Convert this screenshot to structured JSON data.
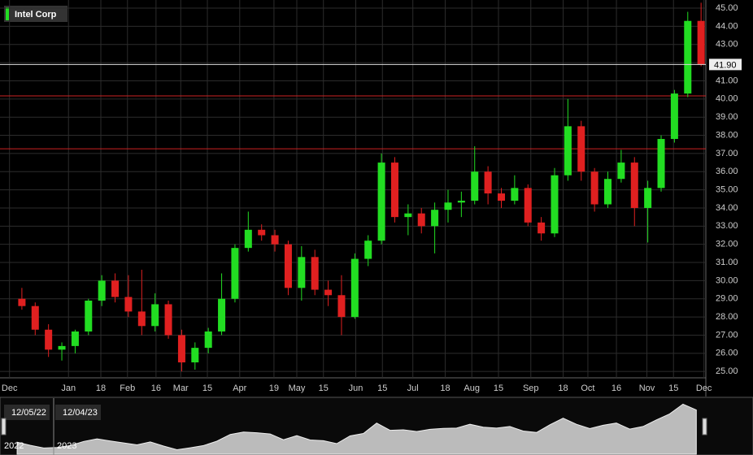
{
  "chart_data": {
    "type": "candlestick",
    "legend": "Intel Corp",
    "legend_color": "#22dd22",
    "up_color": "#22dd22",
    "down_color": "#e02020",
    "grid": true,
    "x": [
      "2022-12-05",
      "2022-12-12",
      "2022-12-19",
      "2022-12-26",
      "2023-01-02",
      "2023-01-09",
      "2023-01-16",
      "2023-01-23",
      "2023-01-30",
      "2023-02-06",
      "2023-02-13",
      "2023-02-20",
      "2023-02-27",
      "2023-03-06",
      "2023-03-13",
      "2023-03-20",
      "2023-03-27",
      "2023-04-03",
      "2023-04-10",
      "2023-04-17",
      "2023-04-24",
      "2023-05-01",
      "2023-05-08",
      "2023-05-15",
      "2023-05-22",
      "2023-05-29",
      "2023-06-05",
      "2023-06-12",
      "2023-06-19",
      "2023-06-26",
      "2023-07-03",
      "2023-07-10",
      "2023-07-17",
      "2023-07-24",
      "2023-07-31",
      "2023-08-07",
      "2023-08-14",
      "2023-08-21",
      "2023-08-28",
      "2023-09-04",
      "2023-09-11",
      "2023-09-18",
      "2023-09-25",
      "2023-10-02",
      "2023-10-09",
      "2023-10-16",
      "2023-10-23",
      "2023-10-30",
      "2023-11-06",
      "2023-11-13",
      "2023-11-20",
      "2023-11-27"
    ],
    "open": [
      29.0,
      28.6,
      27.3,
      26.2,
      26.4,
      27.2,
      28.9,
      30.0,
      29.1,
      28.3,
      27.5,
      28.7,
      27.0,
      25.5,
      26.3,
      27.2,
      29.0,
      31.8,
      32.8,
      32.5,
      32.0,
      29.6,
      31.3,
      29.5,
      29.2,
      28.0,
      31.2,
      32.2,
      36.5,
      33.5,
      33.7,
      33.0,
      33.9,
      34.3,
      34.4,
      36.0,
      34.8,
      34.4,
      35.1,
      33.2,
      32.6,
      35.8,
      38.5,
      36.0,
      34.2,
      35.6,
      36.5,
      34.0,
      35.1,
      37.8,
      40.3,
      44.3
    ],
    "high": [
      29.6,
      28.8,
      27.6,
      26.6,
      27.3,
      29.0,
      30.3,
      30.4,
      30.3,
      30.6,
      29.3,
      28.9,
      27.3,
      26.6,
      27.4,
      30.4,
      32.0,
      33.8,
      33.1,
      32.8,
      32.2,
      31.9,
      31.7,
      30.0,
      30.3,
      31.5,
      32.5,
      37.0,
      36.8,
      34.2,
      34.0,
      34.3,
      35.0,
      34.9,
      37.4,
      36.3,
      35.1,
      35.8,
      35.3,
      33.5,
      36.2,
      40.0,
      38.8,
      36.2,
      36.0,
      37.2,
      36.8,
      35.5,
      38.0,
      40.5,
      44.8,
      45.3
    ],
    "low": [
      28.4,
      27.0,
      25.8,
      25.6,
      26.0,
      27.0,
      28.6,
      28.8,
      28.0,
      27.0,
      27.2,
      26.8,
      25.0,
      25.1,
      26.0,
      27.0,
      28.8,
      31.6,
      32.2,
      31.6,
      29.2,
      28.9,
      29.2,
      28.6,
      27.0,
      27.9,
      30.8,
      32.0,
      33.2,
      32.5,
      32.6,
      31.5,
      33.2,
      33.5,
      34.2,
      34.2,
      34.0,
      34.2,
      33.0,
      32.2,
      32.4,
      35.5,
      35.5,
      33.8,
      34.0,
      35.4,
      33.0,
      32.1,
      34.9,
      37.6,
      40.1,
      41.8
    ],
    "close": [
      28.6,
      27.3,
      26.2,
      26.4,
      27.2,
      28.9,
      30.0,
      29.1,
      28.3,
      27.5,
      28.7,
      27.0,
      25.5,
      26.3,
      27.2,
      29.0,
      31.8,
      32.8,
      32.5,
      32.0,
      29.6,
      31.3,
      29.5,
      29.2,
      28.0,
      31.2,
      32.2,
      36.5,
      33.5,
      33.7,
      33.0,
      33.9,
      34.3,
      34.4,
      36.0,
      34.8,
      34.4,
      35.1,
      33.2,
      32.6,
      35.8,
      38.5,
      36.0,
      34.2,
      35.6,
      36.5,
      34.0,
      35.1,
      37.8,
      40.3,
      44.3,
      41.9
    ],
    "xlim": [
      "2022-11-26",
      "2023-12-02"
    ],
    "xticks": [
      {
        "value": "2022-12-01",
        "label": "Dec"
      },
      {
        "value": "2023-01-01",
        "label": "Jan"
      },
      {
        "value": "2023-01-18",
        "label": "18"
      },
      {
        "value": "2023-02-01",
        "label": "Feb"
      },
      {
        "value": "2023-02-16",
        "label": "16"
      },
      {
        "value": "2023-03-01",
        "label": "Mar"
      },
      {
        "value": "2023-03-15",
        "label": "15"
      },
      {
        "value": "2023-04-01",
        "label": "Apr"
      },
      {
        "value": "2023-04-19",
        "label": "19"
      },
      {
        "value": "2023-05-01",
        "label": "May"
      },
      {
        "value": "2023-05-15",
        "label": "15"
      },
      {
        "value": "2023-06-01",
        "label": "Jun"
      },
      {
        "value": "2023-06-15",
        "label": "15"
      },
      {
        "value": "2023-07-01",
        "label": "Jul"
      },
      {
        "value": "2023-07-18",
        "label": "18"
      },
      {
        "value": "2023-08-01",
        "label": "Aug"
      },
      {
        "value": "2023-08-15",
        "label": "15"
      },
      {
        "value": "2023-09-01",
        "label": "Sep"
      },
      {
        "value": "2023-09-18",
        "label": "18"
      },
      {
        "value": "2023-10-01",
        "label": "Oct"
      },
      {
        "value": "2023-10-16",
        "label": "16"
      },
      {
        "value": "2023-11-01",
        "label": "Nov"
      },
      {
        "value": "2023-11-15",
        "label": "15"
      },
      {
        "value": "2023-12-01",
        "label": "Dec"
      }
    ],
    "ylim": [
      24.65,
      45.45
    ],
    "yticks": [
      {
        "value": 25,
        "label": "25.00"
      },
      {
        "value": 26,
        "label": "26.00"
      },
      {
        "value": 27,
        "label": "27.00"
      },
      {
        "value": 28,
        "label": "28.00"
      },
      {
        "value": 29,
        "label": "29.00"
      },
      {
        "value": 30,
        "label": "30.00"
      },
      {
        "value": 31,
        "label": "31.00"
      },
      {
        "value": 32,
        "label": "32.00"
      },
      {
        "value": 33,
        "label": "33.00"
      },
      {
        "value": 34,
        "label": "34.00"
      },
      {
        "value": 35,
        "label": "35.00"
      },
      {
        "value": 36,
        "label": "36.00"
      },
      {
        "value": 37,
        "label": "37.00"
      },
      {
        "value": 38,
        "label": "38.00"
      },
      {
        "value": 39,
        "label": "39.00"
      },
      {
        "value": 40,
        "label": "40.00"
      },
      {
        "value": 41,
        "label": "41.00"
      },
      {
        "value": 42,
        "label": "42.00"
      },
      {
        "value": 43,
        "label": "43.00"
      },
      {
        "value": 44,
        "label": "44.00"
      },
      {
        "value": 45,
        "label": "45.00"
      }
    ],
    "last_price": {
      "value": 41.9,
      "label": "41.90"
    },
    "reference_lines": [
      40.17,
      37.26
    ],
    "reference_color": "#cc2222",
    "navigator": {
      "start_label": "12/05/22",
      "end_label": "12/04/23",
      "year_labels": [
        "2022",
        "2023"
      ]
    }
  }
}
